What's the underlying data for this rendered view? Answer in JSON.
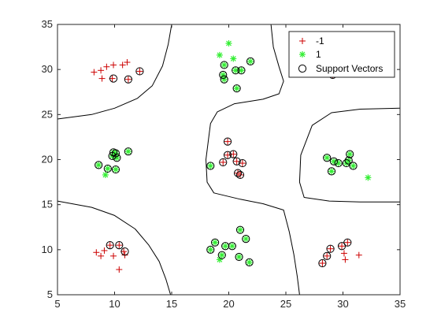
{
  "chart_data": {
    "type": "scatter",
    "xlim": [
      5,
      35
    ],
    "ylim": [
      5,
      35
    ],
    "xticks": [
      "5",
      "10",
      "15",
      "20",
      "25",
      "30",
      "35"
    ],
    "yticks": [
      "5",
      "10",
      "15",
      "20",
      "25",
      "30",
      "35"
    ],
    "grid": false,
    "legend_position": "top-right",
    "legend": [
      {
        "label": "-1",
        "marker": "plus",
        "color": "#cc0000"
      },
      {
        "label": "1",
        "marker": "asterisk",
        "color": "#33ee33"
      },
      {
        "label": "Support Vectors",
        "marker": "circle",
        "color": "#000000"
      }
    ],
    "series": [
      {
        "name": "-1",
        "marker": "plus",
        "color": "#cc0000",
        "points": [
          [
            8.2,
            29.7
          ],
          [
            8.8,
            29.9
          ],
          [
            9.3,
            30.3
          ],
          [
            9.9,
            30.5
          ],
          [
            10.7,
            30.5
          ],
          [
            11.1,
            30.8
          ],
          [
            8.9,
            29.0
          ],
          [
            9.8,
            29.0
          ],
          [
            11.2,
            28.9
          ],
          [
            12.2,
            29.8
          ],
          [
            8.4,
            9.7
          ],
          [
            8.8,
            9.3
          ],
          [
            9.1,
            9.9
          ],
          [
            9.6,
            10.5
          ],
          [
            9.9,
            9.3
          ],
          [
            10.4,
            10.5
          ],
          [
            10.8,
            9.8
          ],
          [
            10.9,
            9.4
          ],
          [
            10.4,
            7.8
          ],
          [
            19.5,
            19.7
          ],
          [
            19.9,
            20.5
          ],
          [
            20.4,
            20.6
          ],
          [
            20.7,
            19.8
          ],
          [
            20.8,
            18.5
          ],
          [
            21.0,
            18.3
          ],
          [
            21.2,
            19.6
          ],
          [
            19.9,
            22.0
          ],
          [
            28.2,
            8.5
          ],
          [
            28.6,
            9.3
          ],
          [
            28.9,
            10.1
          ],
          [
            29.9,
            10.4
          ],
          [
            30.1,
            9.6
          ],
          [
            30.2,
            8.9
          ],
          [
            30.4,
            10.8
          ],
          [
            31.4,
            9.4
          ],
          [
            29.1,
            29.4
          ],
          [
            29.7,
            29.6
          ]
        ]
      },
      {
        "name": "1",
        "marker": "asterisk",
        "color": "#33ee33",
        "points": [
          [
            8.6,
            19.4
          ],
          [
            9.2,
            18.3
          ],
          [
            9.4,
            19.0
          ],
          [
            9.8,
            20.4
          ],
          [
            9.9,
            20.8
          ],
          [
            10.1,
            20.7
          ],
          [
            10.2,
            20.2
          ],
          [
            10.1,
            18.9
          ],
          [
            11.2,
            20.9
          ],
          [
            19.2,
            31.6
          ],
          [
            19.5,
            29.4
          ],
          [
            19.6,
            30.5
          ],
          [
            20.0,
            32.9
          ],
          [
            20.4,
            31.2
          ],
          [
            20.6,
            29.9
          ],
          [
            21.1,
            29.9
          ],
          [
            21.9,
            30.9
          ],
          [
            20.7,
            27.9
          ],
          [
            19.6,
            28.9
          ],
          [
            18.4,
            19.3
          ],
          [
            18.4,
            10.0
          ],
          [
            18.8,
            10.8
          ],
          [
            19.2,
            8.9
          ],
          [
            19.4,
            9.4
          ],
          [
            19.7,
            10.4
          ],
          [
            20.3,
            10.4
          ],
          [
            20.9,
            9.2
          ],
          [
            21.0,
            12.2
          ],
          [
            21.5,
            11.2
          ],
          [
            21.8,
            8.6
          ],
          [
            28.6,
            20.2
          ],
          [
            29.0,
            18.7
          ],
          [
            29.2,
            19.8
          ],
          [
            29.6,
            19.6
          ],
          [
            30.3,
            19.6
          ],
          [
            30.6,
            20.6
          ],
          [
            30.5,
            19.9
          ],
          [
            30.9,
            19.3
          ],
          [
            32.2,
            18.0
          ]
        ]
      }
    ],
    "support_vectors": [
      [
        9.9,
        29.0
      ],
      [
        11.2,
        28.9
      ],
      [
        12.2,
        29.8
      ],
      [
        9.6,
        10.5
      ],
      [
        10.4,
        10.5
      ],
      [
        10.9,
        9.8
      ],
      [
        8.6,
        19.4
      ],
      [
        9.4,
        19.0
      ],
      [
        9.8,
        20.4
      ],
      [
        9.9,
        20.8
      ],
      [
        10.1,
        20.7
      ],
      [
        10.2,
        20.2
      ],
      [
        10.1,
        18.9
      ],
      [
        11.2,
        20.9
      ],
      [
        19.5,
        29.4
      ],
      [
        19.6,
        30.5
      ],
      [
        20.6,
        29.9
      ],
      [
        21.1,
        29.9
      ],
      [
        21.9,
        30.9
      ],
      [
        20.7,
        27.9
      ],
      [
        19.6,
        28.9
      ],
      [
        18.4,
        19.3
      ],
      [
        19.5,
        19.7
      ],
      [
        19.9,
        20.5
      ],
      [
        20.4,
        20.6
      ],
      [
        20.7,
        19.8
      ],
      [
        20.8,
        18.5
      ],
      [
        21.0,
        18.3
      ],
      [
        21.2,
        19.6
      ],
      [
        19.9,
        22.0
      ],
      [
        18.4,
        10.0
      ],
      [
        18.8,
        10.8
      ],
      [
        19.4,
        9.4
      ],
      [
        19.7,
        10.4
      ],
      [
        20.3,
        10.4
      ],
      [
        20.9,
        9.2
      ],
      [
        21.0,
        12.2
      ],
      [
        21.5,
        11.2
      ],
      [
        21.8,
        8.6
      ],
      [
        28.2,
        8.5
      ],
      [
        28.6,
        9.3
      ],
      [
        28.9,
        10.1
      ],
      [
        29.9,
        10.4
      ],
      [
        30.4,
        10.8
      ],
      [
        28.6,
        20.2
      ],
      [
        29.0,
        18.7
      ],
      [
        29.2,
        19.8
      ],
      [
        29.6,
        19.6
      ],
      [
        30.3,
        19.6
      ],
      [
        30.6,
        20.6
      ],
      [
        30.5,
        19.9
      ],
      [
        30.9,
        19.3
      ],
      [
        29.1,
        29.4
      ],
      [
        29.7,
        29.6
      ]
    ],
    "decision_boundary": [
      [
        [
          5.0,
          24.5
        ],
        [
          8.0,
          25.0
        ],
        [
          10.0,
          25.7
        ],
        [
          12.0,
          26.8
        ],
        [
          13.3,
          28.2
        ],
        [
          14.2,
          30.4
        ],
        [
          14.7,
          32.8
        ],
        [
          15.0,
          35.0
        ]
      ],
      [
        [
          5.0,
          15.4
        ],
        [
          8.0,
          14.7
        ],
        [
          10.0,
          13.8
        ],
        [
          11.8,
          12.3
        ],
        [
          13.0,
          10.5
        ],
        [
          13.9,
          8.7
        ],
        [
          14.5,
          6.7
        ],
        [
          14.9,
          5.0
        ]
      ],
      [
        [
          23.7,
          35.0
        ],
        [
          23.9,
          32.5
        ],
        [
          24.4,
          30.3
        ],
        [
          24.8,
          28.7
        ],
        [
          24.4,
          27.3
        ],
        [
          23.0,
          26.7
        ],
        [
          20.5,
          26.2
        ],
        [
          19.0,
          25.3
        ],
        [
          18.4,
          24.0
        ],
        [
          18.2,
          22.0
        ],
        [
          18.0,
          20.0
        ],
        [
          18.1,
          17.5
        ],
        [
          18.7,
          16.3
        ],
        [
          21.0,
          15.6
        ],
        [
          23.0,
          15.1
        ],
        [
          24.8,
          14.4
        ],
        [
          25.3,
          12.0
        ],
        [
          25.7,
          9.5
        ],
        [
          26.0,
          7.0
        ],
        [
          26.2,
          5.0
        ]
      ],
      [
        [
          35.0,
          25.7
        ],
        [
          31.5,
          25.6
        ],
        [
          29.0,
          25.2
        ],
        [
          27.3,
          23.8
        ],
        [
          26.3,
          20.5
        ],
        [
          26.2,
          17.5
        ],
        [
          26.6,
          15.8
        ],
        [
          28.8,
          15.4
        ],
        [
          31.5,
          15.3
        ],
        [
          35.0,
          15.3
        ]
      ]
    ]
  }
}
